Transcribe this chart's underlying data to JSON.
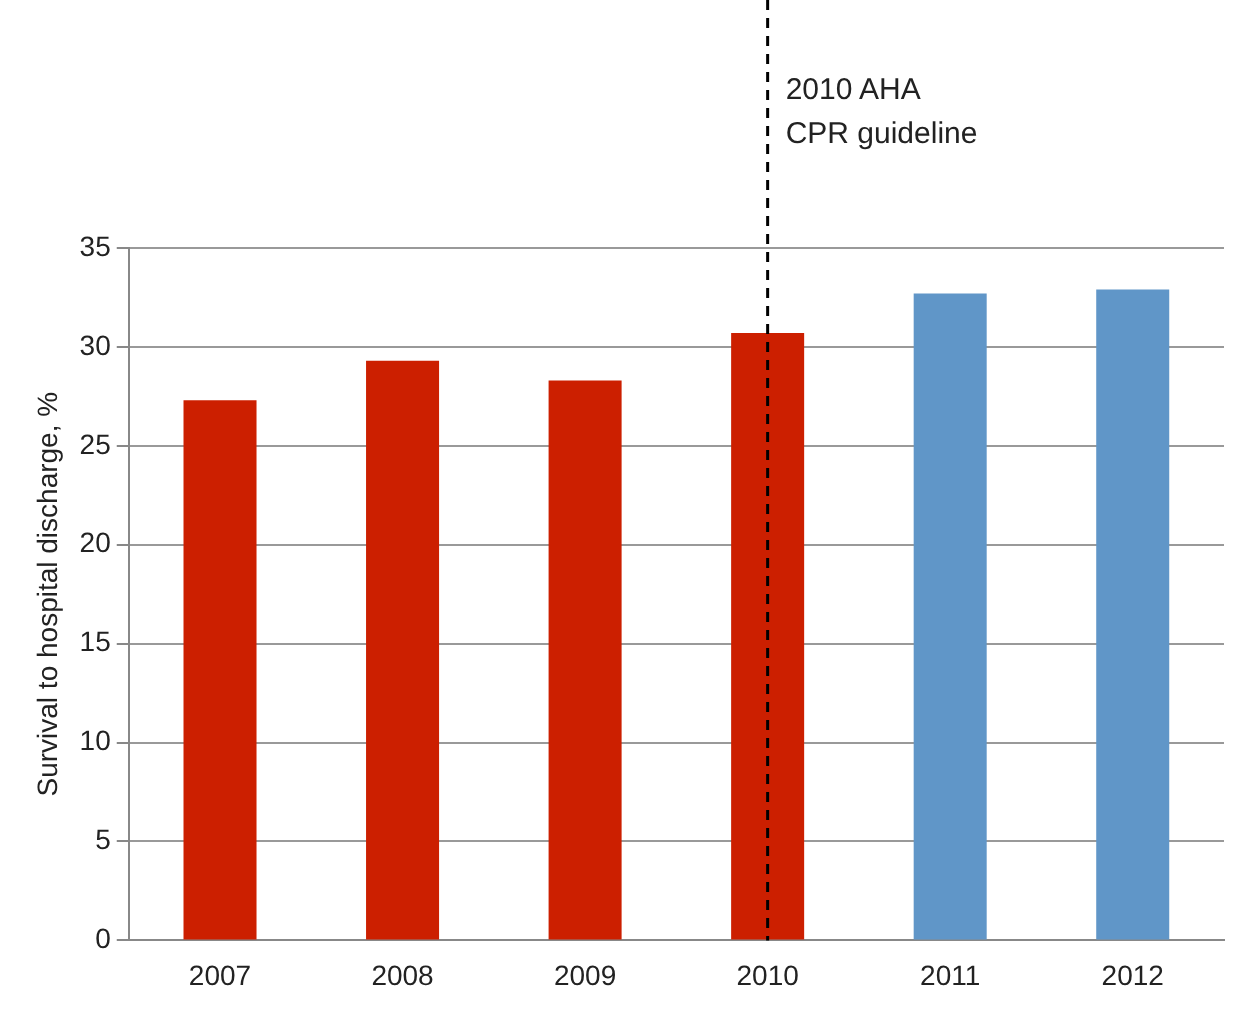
{
  "chart_data": {
    "type": "bar",
    "ylabel": "Survival to hospital discharge, %",
    "categories": [
      "2007",
      "2008",
      "2009",
      "2010",
      "2011",
      "2012"
    ],
    "values": [
      27.3,
      29.3,
      28.3,
      30.7,
      32.7,
      32.9
    ],
    "colors": [
      "#cc1f00",
      "#cc1f00",
      "#cc1f00",
      "#cc1f00",
      "#6096c8",
      "#6096c8"
    ],
    "ylim": [
      0,
      35
    ],
    "yticks": [
      0,
      5,
      10,
      15,
      20,
      25,
      30,
      35
    ],
    "grid": "y",
    "ref_lines": [
      {
        "axis": "x",
        "value": "2010",
        "label": "2010 AHA\nCPR guideline",
        "color": "#000000",
        "line_style": "dashed"
      }
    ]
  }
}
